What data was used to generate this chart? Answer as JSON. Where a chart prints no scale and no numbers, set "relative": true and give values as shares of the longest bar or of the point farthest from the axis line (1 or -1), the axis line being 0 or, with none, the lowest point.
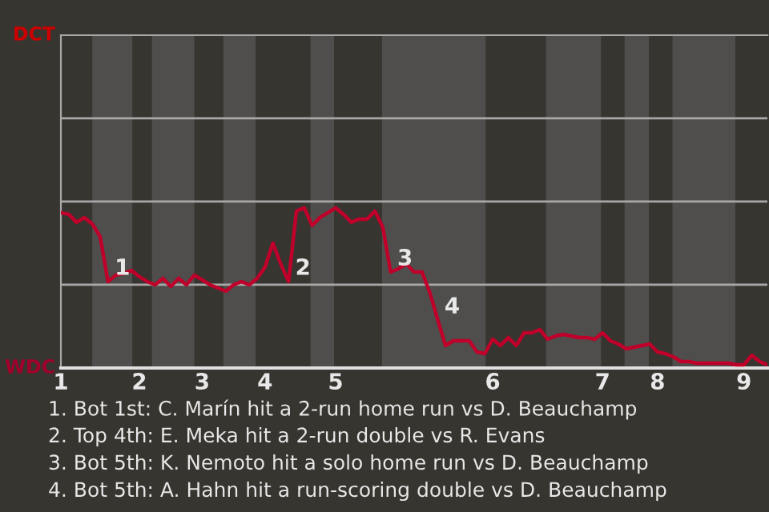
{
  "chart_data": {
    "type": "line",
    "relative": true,
    "categories": [
      "1",
      null,
      null,
      null,
      null,
      null,
      null,
      null,
      null,
      null,
      "2",
      null,
      null,
      null,
      null,
      null,
      null,
      null,
      "3",
      null,
      null,
      null,
      null,
      null,
      null,
      null,
      "4",
      null,
      null,
      null,
      null,
      null,
      null,
      null,
      null,
      "5",
      null,
      null,
      null,
      null,
      null,
      null,
      null,
      null,
      null,
      null,
      null,
      null,
      null,
      null,
      null,
      null,
      null,
      null,
      null,
      "6",
      null,
      null,
      null,
      null,
      null,
      null,
      null,
      null,
      null,
      null,
      null,
      null,
      null,
      "7",
      null,
      null,
      null,
      null,
      null,
      null,
      "8",
      null,
      null,
      null,
      null,
      null,
      null,
      null,
      null,
      null,
      null,
      "9",
      null,
      null,
      null
    ],
    "ref_lines": [
      {
        "axis": "y",
        "value": 0.52,
        "color": "#a8a8a8"
      },
      {
        "axis": "y",
        "value": 1.04,
        "color": "#a8a8a8"
      },
      {
        "axis": "y",
        "value": 1.56,
        "color": "#a8a8a8"
      }
    ],
    "marker": "none",
    "line_style": "solid",
    "series": [
      {
        "color": "#c0002a",
        "values": [
          0.97,
          0.96,
          0.91,
          0.94,
          0.9,
          0.82,
          0.54,
          0.58,
          0.59,
          0.61,
          0.57,
          0.54,
          0.52,
          0.56,
          0.51,
          0.56,
          0.52,
          0.58,
          0.55,
          0.52,
          0.5,
          0.48,
          0.52,
          0.54,
          0.52,
          0.56,
          0.63,
          0.78,
          0.65,
          0.54,
          0.98,
          1,
          0.89,
          0.94,
          0.97,
          1,
          0.96,
          0.91,
          0.93,
          0.93,
          0.98,
          0.88,
          0.6,
          0.62,
          0.65,
          0.6,
          0.6,
          0.47,
          0.3,
          0.14,
          0.17,
          0.17,
          0.17,
          0.1,
          0.09,
          0.18,
          0.14,
          0.19,
          0.14,
          0.22,
          0.22,
          0.24,
          0.18,
          0.2,
          0.21,
          0.2,
          0.19,
          0.19,
          0.18,
          0.22,
          0.17,
          0.15,
          0.12,
          0.13,
          0.14,
          0.15,
          0.1,
          0.09,
          0.07,
          0.04,
          0.04,
          0.03,
          0.03,
          0.03,
          0.03,
          0.03,
          0.02,
          0.02,
          0.08,
          0.04,
          0.02
        ]
      }
    ],
    "annotations": [
      "DCT",
      "WDC",
      "1",
      "2",
      "3",
      "4",
      "1. Bot 1st: C. Marín hit a 2-run home run vs D. Beauchamp",
      "2. Top 4th: E. Meka hit a 2-run double vs R. Evans",
      "3. Bot 5th: K. Nemoto hit a solo home run vs D. Beauchamp",
      "4. Bot 5th: A. Hahn hit a run-scoring double vs D. Beauchamp"
    ]
  }
}
